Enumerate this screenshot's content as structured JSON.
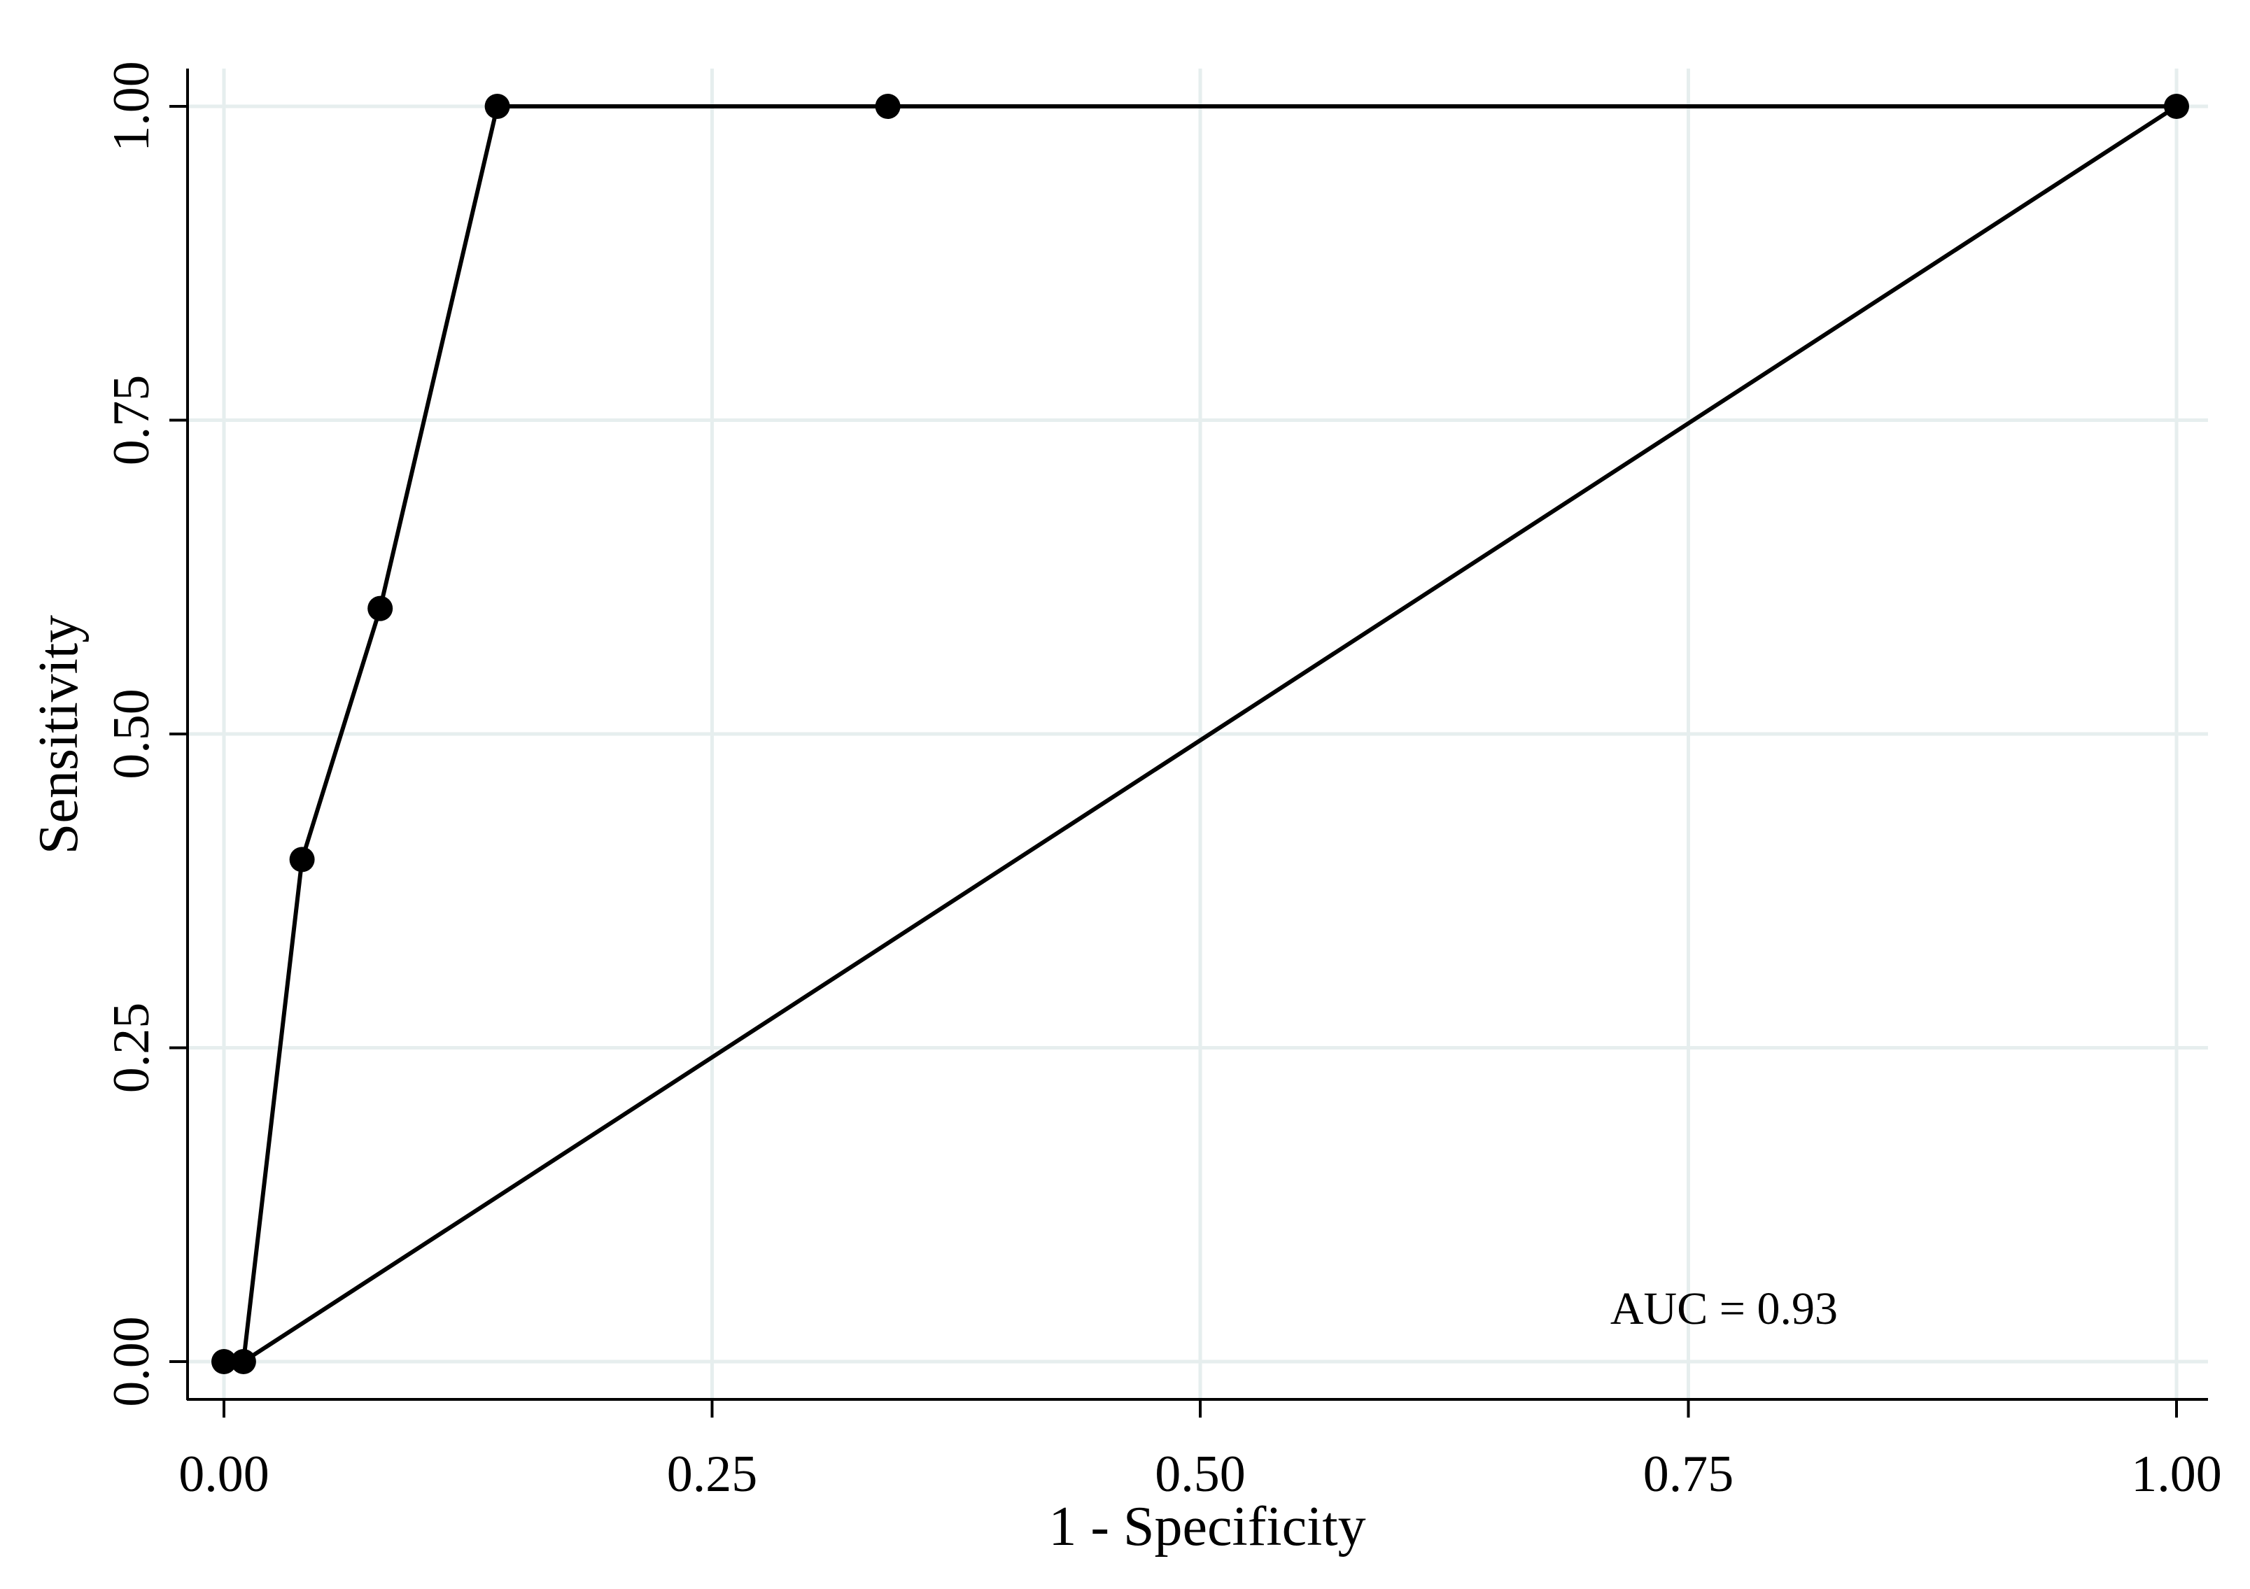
{
  "chart_data": {
    "type": "line",
    "title": "",
    "xlabel": "1 - Specificity",
    "ylabel": "Sensitivity",
    "xlim": [
      0,
      1
    ],
    "ylim": [
      0,
      1
    ],
    "x_ticks": [
      0,
      0.25,
      0.5,
      0.75,
      1
    ],
    "x_tick_labels": [
      "0.00",
      "0.25",
      "0.50",
      "0.75",
      "1.00"
    ],
    "y_ticks": [
      0,
      0.25,
      0.5,
      0.75,
      1
    ],
    "y_tick_labels": [
      "0.00",
      "0.25",
      "0.50",
      "0.75",
      "1.00"
    ],
    "grid": true,
    "series": [
      {
        "points": [
          {
            "x": 0.0,
            "y": 0.0
          },
          {
            "x": 0.01,
            "y": 0.0
          },
          {
            "x": 0.04,
            "y": 0.4
          },
          {
            "x": 0.08,
            "y": 0.6
          },
          {
            "x": 0.14,
            "y": 1.0
          },
          {
            "x": 0.34,
            "y": 1.0
          },
          {
            "x": 1.0,
            "y": 1.0
          }
        ],
        "markers": true
      },
      {
        "points": [
          {
            "x": 0.01,
            "y": 0.0
          },
          {
            "x": 1.0,
            "y": 1.0
          }
        ],
        "markers": false
      }
    ],
    "annotations": [
      {
        "text": "AUC = 0.93",
        "x": 0.71,
        "y": 0.03
      }
    ],
    "colors": {
      "line": "#000000",
      "grid": "#e6eeee",
      "background": "#ffffff"
    }
  }
}
